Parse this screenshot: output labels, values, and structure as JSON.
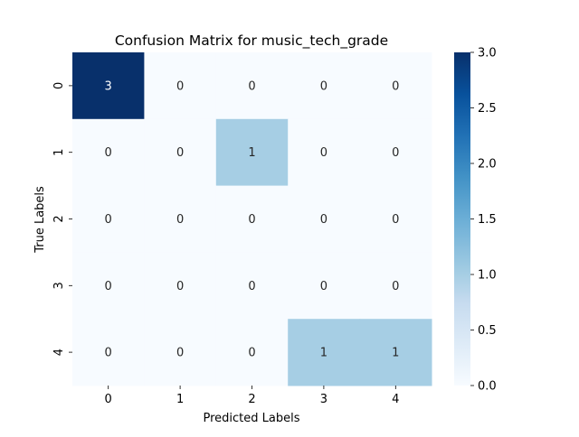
{
  "chart_data": {
    "type": "heatmap",
    "title": "Confusion Matrix for music_tech_grade",
    "xlabel": "Predicted Labels",
    "ylabel": "True Labels",
    "x_categories": [
      "0",
      "1",
      "2",
      "3",
      "4"
    ],
    "y_categories": [
      "0",
      "1",
      "2",
      "3",
      "4"
    ],
    "values": [
      [
        3,
        0,
        0,
        0,
        0
      ],
      [
        0,
        0,
        1,
        0,
        0
      ],
      [
        0,
        0,
        0,
        0,
        0
      ],
      [
        0,
        0,
        0,
        0,
        0
      ],
      [
        0,
        0,
        0,
        1,
        1
      ]
    ],
    "colorbar": {
      "colormap": "Blues",
      "range": [
        0.0,
        3.0
      ],
      "ticks": [
        "0.0",
        "0.5",
        "1.0",
        "1.5",
        "2.0",
        "2.5",
        "3.0"
      ]
    },
    "colors": {
      "low": "#f7fbff",
      "mid": "#a6cee4",
      "high": "#08306b",
      "annotation_light": "#ffffff",
      "annotation_dark": "#262626"
    }
  }
}
